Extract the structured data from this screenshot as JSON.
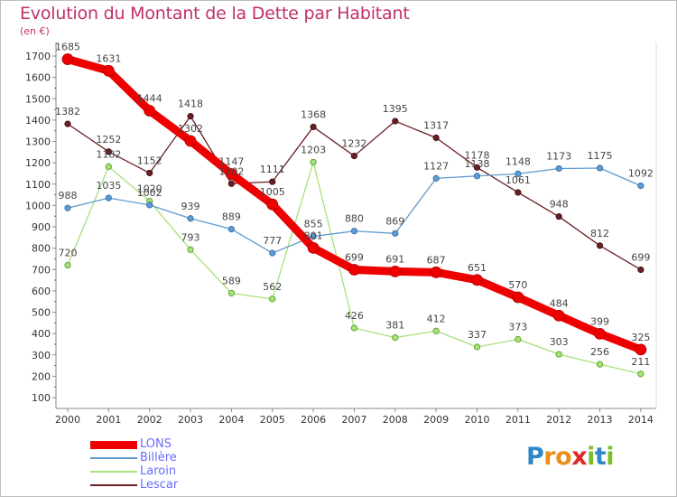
{
  "header": {
    "title": "Evolution du Montant de la Dette par Habitant",
    "unit": "(en €)"
  },
  "brand": {
    "letters": [
      {
        "ch": "P",
        "color": "#2f86c8"
      },
      {
        "ch": "r",
        "color": "#e8901f"
      },
      {
        "ch": "o",
        "color": "#e8901f"
      },
      {
        "ch": "x",
        "color": "#e2272b"
      },
      {
        "ch": "i",
        "color": "#7bbd2a"
      },
      {
        "ch": "t",
        "color": "#2f86c8"
      },
      {
        "ch": "i",
        "color": "#7bbd2a"
      }
    ]
  },
  "chart_data": {
    "type": "line",
    "title": "Evolution du Montant de la Dette par Habitant",
    "ylabel": "(en €)",
    "ylim": [
      100,
      1700
    ],
    "yticks": [
      100,
      200,
      300,
      400,
      500,
      600,
      700,
      800,
      900,
      1000,
      1100,
      1200,
      1300,
      1400,
      1500,
      1600,
      1700
    ],
    "x": [
      "2000",
      "2001",
      "2002",
      "2003",
      "2004",
      "2005",
      "2006",
      "2007",
      "2008",
      "2009",
      "2010",
      "2011",
      "2012",
      "2013",
      "2014"
    ],
    "grid": false,
    "legend": "bottom-left",
    "series": [
      {
        "name": "Lescar",
        "color": "#6b1f24",
        "width": 1.3,
        "marker": 3.2,
        "values": [
          1382,
          1252,
          1152,
          1418,
          1102,
          1111,
          1368,
          1232,
          1395,
          1317,
          1178,
          1061,
          948,
          812,
          699
        ]
      },
      {
        "name": "Laroin",
        "color": "#a8e07a",
        "width": 1.3,
        "marker": 3.2,
        "values": [
          720,
          1182,
          1020,
          793,
          589,
          562,
          1203,
          426,
          381,
          412,
          337,
          373,
          303,
          256,
          211
        ]
      },
      {
        "name": "Billère",
        "color": "#5f9ad0",
        "width": 1.3,
        "marker": 3.2,
        "values": [
          988,
          1035,
          1002,
          939,
          889,
          777,
          855,
          880,
          869,
          1127,
          1138,
          1148,
          1173,
          1175,
          1092
        ]
      },
      {
        "name": "LONS",
        "color": "#ee0000",
        "width": 9,
        "marker": 6,
        "values": [
          1685,
          1631,
          1444,
          1302,
          1147,
          1005,
          801,
          699,
          691,
          687,
          651,
          570,
          484,
          399,
          325
        ]
      }
    ]
  },
  "legend": {
    "items": [
      {
        "name": "LONS",
        "color": "#ee0000",
        "textColor": "#6b6bff",
        "thick": 9
      },
      {
        "name": "Billère",
        "color": "#5f9ad0",
        "textColor": "#6b6bff",
        "thick": 2
      },
      {
        "name": "Laroin",
        "color": "#a8e07a",
        "textColor": "#6b6bff",
        "thick": 2
      },
      {
        "name": "Lescar",
        "color": "#6b1f24",
        "textColor": "#6b6bff",
        "thick": 2
      }
    ]
  }
}
